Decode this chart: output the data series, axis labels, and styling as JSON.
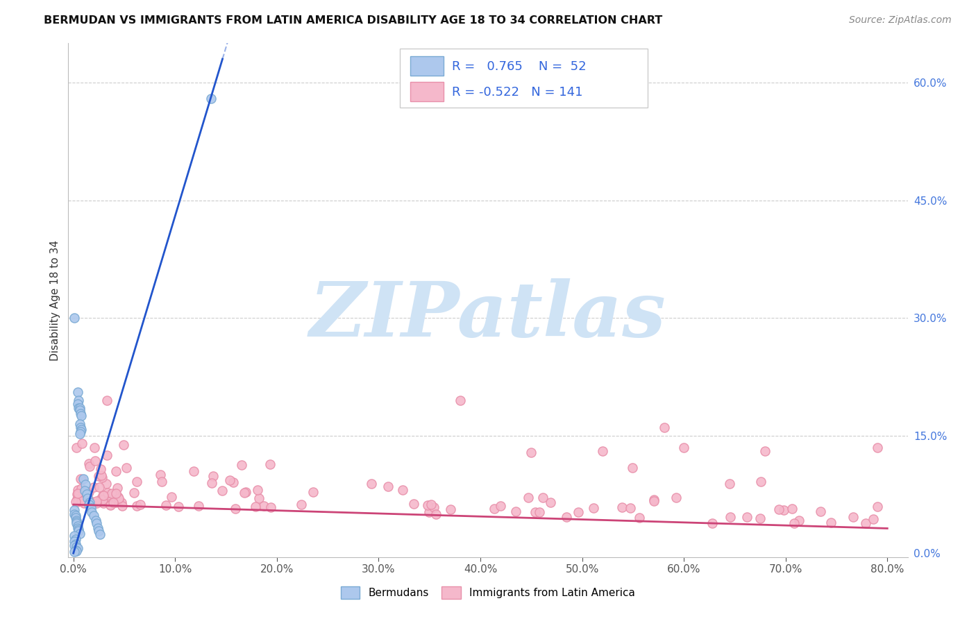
{
  "title": "BERMUDAN VS IMMIGRANTS FROM LATIN AMERICA DISABILITY AGE 18 TO 34 CORRELATION CHART",
  "source": "Source: ZipAtlas.com",
  "ylabel": "Disability Age 18 to 34",
  "xlim": [
    -0.005,
    0.82
  ],
  "ylim": [
    -0.005,
    0.65
  ],
  "xticks": [
    0.0,
    0.1,
    0.2,
    0.3,
    0.4,
    0.5,
    0.6,
    0.7,
    0.8
  ],
  "yticks_right": [
    0.0,
    0.15,
    0.3,
    0.45,
    0.6
  ],
  "blue_R": 0.765,
  "blue_N": 52,
  "pink_R": -0.522,
  "pink_N": 141,
  "blue_color": "#adc8ed",
  "blue_edge": "#7aaad4",
  "pink_color": "#f5b8cb",
  "pink_edge": "#e890aa",
  "blue_line_color": "#2255cc",
  "pink_line_color": "#cc4477",
  "watermark_color": "#cfe3f5",
  "legend_label_blue": "Bermudans",
  "legend_label_pink": "Immigrants from Latin America",
  "blue_slope": 4.3,
  "blue_intercept": 0.0,
  "pink_slope": -0.038,
  "pink_intercept": 0.062,
  "title_fontsize": 11.5,
  "source_fontsize": 10,
  "tick_fontsize": 11,
  "ylabel_fontsize": 11,
  "legend_fontsize": 11,
  "stats_fontsize": 13,
  "stats_color": "#3366dd"
}
